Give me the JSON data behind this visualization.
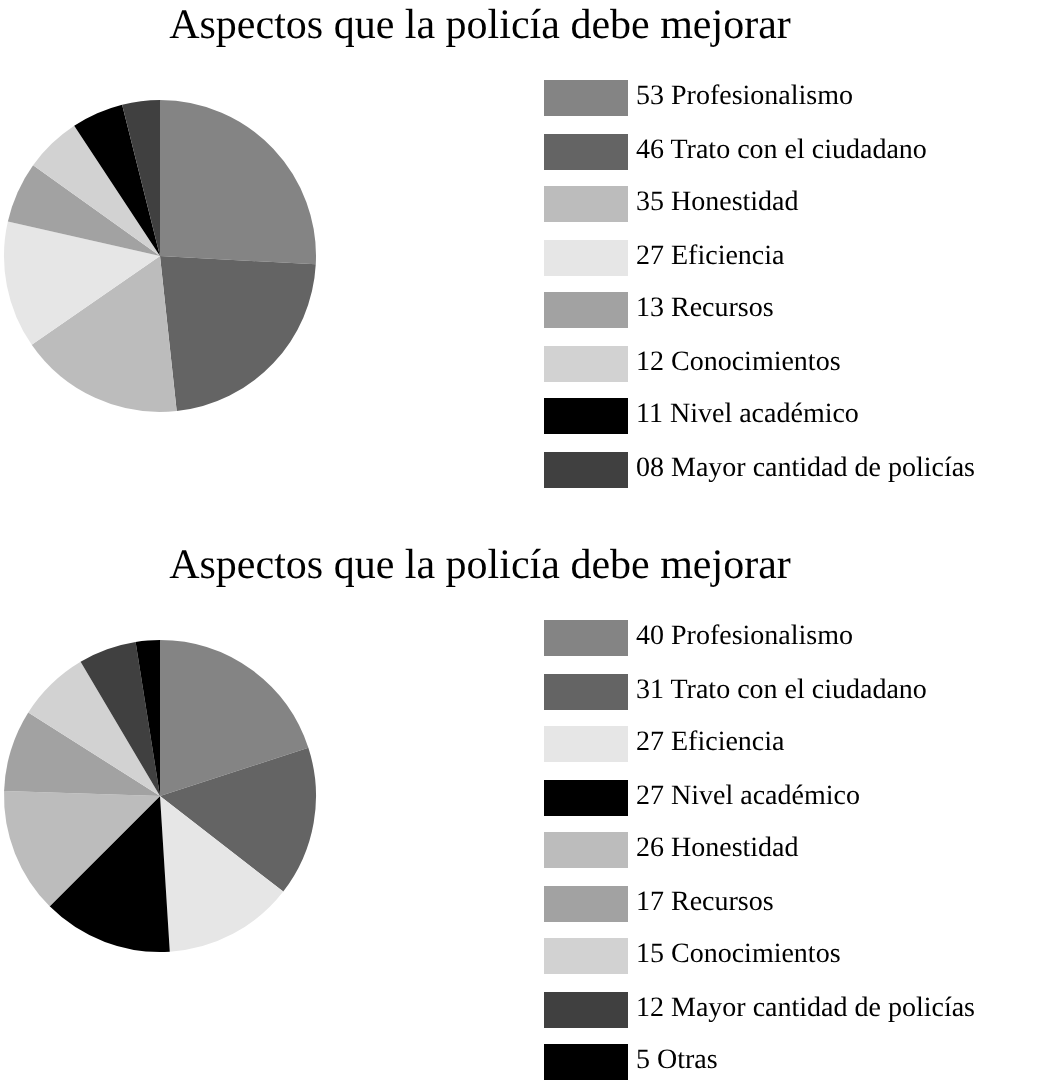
{
  "chart_data": [
    {
      "type": "pie",
      "title": "Aspectos que la policía debe mejorar",
      "legend": "right",
      "categories": [
        "Profesionalismo",
        "Trato con el ciudadano",
        "Honestidad",
        "Eficiencia",
        "Recursos",
        "Conocimientos",
        "Nivel académico",
        "Mayor cantidad de policías"
      ],
      "values": [
        53,
        46,
        35,
        27,
        13,
        12,
        11,
        8
      ],
      "value_labels": [
        "53",
        "46",
        "35",
        "27",
        "13",
        "12",
        "11",
        "08"
      ],
      "colors": [
        "#848484",
        "#646464",
        "#bcbcbc",
        "#e6e6e6",
        "#a2a2a2",
        "#d2d2d2",
        "#000000",
        "#404040"
      ]
    },
    {
      "type": "pie",
      "title": "Aspectos que la policía debe mejorar",
      "legend": "right",
      "categories": [
        "Profesionalismo",
        "Trato con el ciudadano",
        "Eficiencia",
        "Nivel académico",
        "Honestidad",
        "Recursos",
        "Conocimientos",
        "Mayor cantidad de policías",
        "Otras"
      ],
      "values": [
        40,
        31,
        27,
        27,
        26,
        17,
        15,
        12,
        5
      ],
      "value_labels": [
        "40",
        "31",
        "27",
        "27",
        "26",
        "17",
        "15",
        "12",
        "5"
      ],
      "colors": [
        "#848484",
        "#646464",
        "#e6e6e6",
        "#000000",
        "#bcbcbc",
        "#a2a2a2",
        "#d2d2d2",
        "#404040",
        "#000000"
      ]
    }
  ]
}
